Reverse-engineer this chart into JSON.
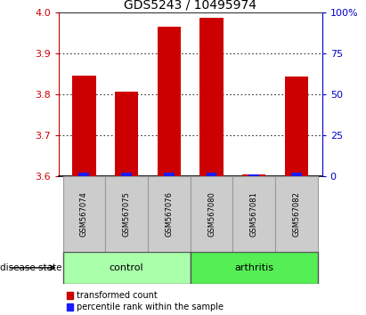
{
  "title": "GDS5243 / 10495974",
  "samples": [
    "GSM567074",
    "GSM567075",
    "GSM567076",
    "GSM567080",
    "GSM567081",
    "GSM567082"
  ],
  "groups": [
    "control",
    "control",
    "control",
    "arthritis",
    "arthritis",
    "arthritis"
  ],
  "transformed_count": [
    3.845,
    3.808,
    3.965,
    3.988,
    3.605,
    3.843
  ],
  "percentile_rank": [
    2.5,
    2.5,
    2.5,
    2.5,
    1.0,
    2.5
  ],
  "y_min": 3.6,
  "y_max": 4.0,
  "y_ticks_left": [
    3.6,
    3.7,
    3.8,
    3.9,
    4.0
  ],
  "y_ticks_right": [
    0,
    25,
    50,
    75,
    100
  ],
  "bar_color_red": "#cc0000",
  "bar_color_blue": "#1a1aff",
  "control_color": "#aaffaa",
  "arthritis_color": "#55ee55",
  "sample_box_color": "#cccccc",
  "control_label": "control",
  "arthritis_label": "arthritis",
  "disease_state_label": "disease state",
  "legend_red": "transformed count",
  "legend_blue": "percentile rank within the sample",
  "bar_width": 0.55,
  "left_tick_color": "#cc0000",
  "right_tick_color": "#0000cc",
  "title_fontsize": 10,
  "tick_fontsize": 8,
  "label_fontsize": 7,
  "legend_fontsize": 7
}
